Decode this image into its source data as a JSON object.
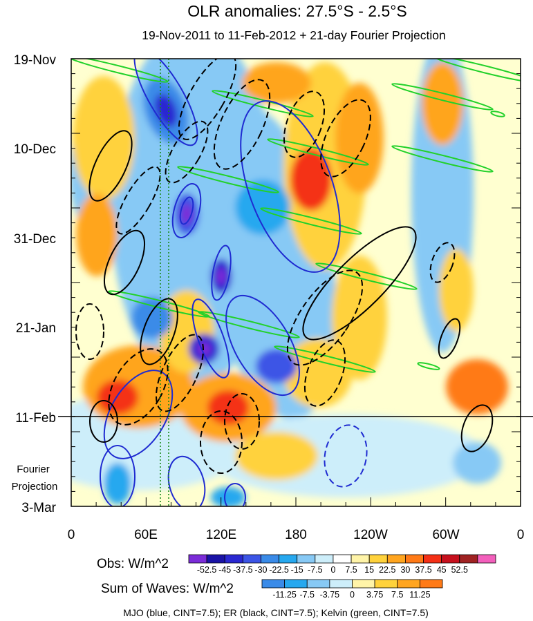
{
  "chart_data": {
    "type": "heatmap",
    "title": "OLR anomalies: 27.5°S - 2.5°S",
    "subtitle": "19-Nov-2011 to 11-Feb-2012 + 21-day Fourier Projection",
    "y_ticks": [
      "19-Nov",
      "10-Dec",
      "31-Dec",
      "21-Jan",
      "11-Feb",
      "3-Mar"
    ],
    "x_ticks": [
      "0",
      "60E",
      "120E",
      "180",
      "120W",
      "60W",
      "0"
    ],
    "projection_label_line1": "Fourier",
    "projection_label_line2": "Projection",
    "obs_colorbar": {
      "label": "Obs: W/m^2",
      "levels": [
        "-52.5",
        "-45",
        "-37.5",
        "-30",
        "-22.5",
        "-15",
        "-7.5",
        "0",
        "7.5",
        "15",
        "22.5",
        "30",
        "37.5",
        "45",
        "52.5"
      ],
      "colors": [
        "#7b2cd8",
        "#1a13a6",
        "#2a28d1",
        "#3c55e6",
        "#3a8be8",
        "#26a8ef",
        "#87c9f5",
        "#cdeefa",
        "#ffffff",
        "#fff4a8",
        "#ffd23c",
        "#ffa51f",
        "#ff7a17",
        "#f43016",
        "#c7101d",
        "#a02222",
        "#f35fbc"
      ]
    },
    "waves_colorbar": {
      "label": "Sum of Waves: W/m^2",
      "levels": [
        "-11.25",
        "-7.5",
        "-3.75",
        "0",
        "3.75",
        "7.5",
        "11.25"
      ],
      "colors": [
        "#3a8be8",
        "#26a8ef",
        "#87c9f5",
        "#cdeefa",
        "#fff4a8",
        "#ffd23c",
        "#ffa51f",
        "#ff7a17"
      ]
    },
    "footer": "MJO (blue, CINT=7.5); ER (black, CINT=7.5); Kelvin (green, CINT=7.5)",
    "series": [
      {
        "name": "MJO",
        "color": "#1f2bd1"
      },
      {
        "name": "ER",
        "color": "#000000"
      },
      {
        "name": "Kelvin",
        "color": "#22d12a"
      }
    ]
  }
}
